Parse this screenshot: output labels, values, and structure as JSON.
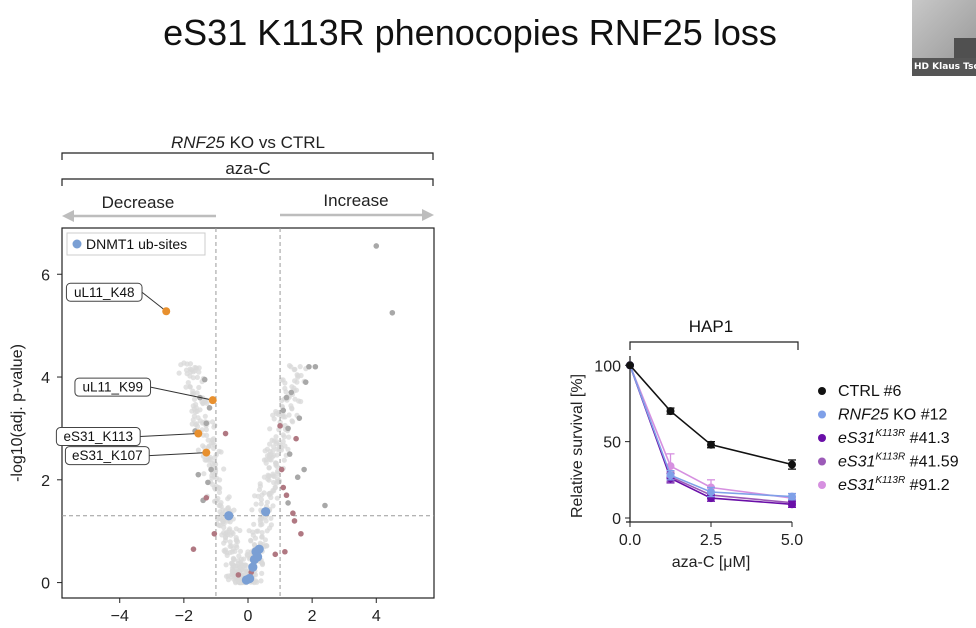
{
  "slide": {
    "title": "eS31 K113R phenocopies RNF25 loss"
  },
  "video": {
    "caption": "HD Klaus Tsc"
  },
  "chart_data": [
    {
      "type": "scatter",
      "bracket_top": {
        "italic": "RNF25",
        "rest": " KO vs CTRL"
      },
      "bracket_sub": "aza-C",
      "arrow_left": "Decrease",
      "arrow_right": "Increase",
      "ylabel": "-log10(adj. p-value)",
      "xlabel": "",
      "xlim": [
        -5.8,
        5.8
      ],
      "ylim": [
        -0.3,
        6.9
      ],
      "xticks": [
        -4,
        -2,
        0,
        2,
        4
      ],
      "yticks": [
        0,
        2,
        4,
        6
      ],
      "thresholds": {
        "x": [
          -1,
          1
        ],
        "y": 1.3
      },
      "legend": {
        "label": "DNMT1 ub-sites",
        "color": "#7a9fd4",
        "placement": "top-left"
      },
      "colors": {
        "background": "#d8d8d8",
        "significant": "#a8a8a8",
        "dnmt1": "#7a9fd4",
        "highlight": "#e8902e",
        "other": "#b07882"
      },
      "highlighted": [
        {
          "label": "uL11_K48",
          "x": -2.55,
          "y": 5.28
        },
        {
          "label": "uL11_K99",
          "x": -1.1,
          "y": 3.55
        },
        {
          "label": "eS31_K113",
          "x": -1.55,
          "y": 2.9
        },
        {
          "label": "eS31_K107",
          "x": -1.3,
          "y": 2.53
        }
      ],
      "dnmt1_points": [
        {
          "x": -0.6,
          "y": 1.3
        },
        {
          "x": 0.55,
          "y": 1.38
        },
        {
          "x": 0.25,
          "y": 0.6
        },
        {
          "x": 0.35,
          "y": 0.65
        },
        {
          "x": 0.2,
          "y": 0.45
        },
        {
          "x": 0.15,
          "y": 0.3
        },
        {
          "x": -0.05,
          "y": 0.05
        },
        {
          "x": 0.05,
          "y": 0.08
        },
        {
          "x": 0.3,
          "y": 0.5
        }
      ],
      "other_points": [
        {
          "x": -1.3,
          "y": 1.65
        },
        {
          "x": -0.7,
          "y": 2.9
        },
        {
          "x": -1.7,
          "y": 0.65
        },
        {
          "x": -1.05,
          "y": 0.95
        },
        {
          "x": -0.3,
          "y": 0.15
        },
        {
          "x": 0.1,
          "y": 0.2
        },
        {
          "x": 0.85,
          "y": 0.55
        },
        {
          "x": 1.1,
          "y": 1.85
        },
        {
          "x": 1.2,
          "y": 1.7
        },
        {
          "x": 1.05,
          "y": 2.2
        },
        {
          "x": 1.4,
          "y": 1.35
        },
        {
          "x": 1.5,
          "y": 2.8
        },
        {
          "x": 1.15,
          "y": 0.6
        },
        {
          "x": 1.0,
          "y": 3.05
        },
        {
          "x": 1.45,
          "y": 1.2
        },
        {
          "x": 1.65,
          "y": 0.95
        }
      ],
      "significant_points": [
        {
          "x": 4.0,
          "y": 6.55
        },
        {
          "x": 4.5,
          "y": 5.25
        },
        {
          "x": 1.9,
          "y": 4.2
        },
        {
          "x": 2.1,
          "y": 4.2
        },
        {
          "x": 1.35,
          "y": 3.7
        },
        {
          "x": 1.8,
          "y": 3.9
        },
        {
          "x": 2.4,
          "y": 1.5
        },
        {
          "x": 1.6,
          "y": 3.2
        },
        {
          "x": 1.2,
          "y": 3.6
        },
        {
          "x": 1.1,
          "y": 3.35
        },
        {
          "x": 1.25,
          "y": 3.0
        },
        {
          "x": 1.75,
          "y": 2.2
        },
        {
          "x": -1.35,
          "y": 3.95
        },
        {
          "x": -1.5,
          "y": 3.6
        },
        {
          "x": -1.2,
          "y": 3.4
        },
        {
          "x": -1.65,
          "y": 2.95
        },
        {
          "x": -1.15,
          "y": 2.2
        },
        {
          "x": -1.55,
          "y": 2.1
        },
        {
          "x": -1.25,
          "y": 1.95
        },
        {
          "x": -1.4,
          "y": 1.6
        },
        {
          "x": -1.3,
          "y": 3.1
        },
        {
          "x": 1.3,
          "y": 2.5
        },
        {
          "x": 1.55,
          "y": 2.05
        },
        {
          "x": 1.25,
          "y": 1.55
        }
      ]
    },
    {
      "type": "line",
      "title": "HAP1",
      "xlabel": "aza-C [μM]",
      "ylabel": "Relative survival [%]",
      "x": [
        0.0,
        1.25,
        2.5,
        5.0
      ],
      "xticks": [
        "0.0",
        "2.5",
        "5.0"
      ],
      "yticks": [
        0,
        50,
        100
      ],
      "xlim": [
        0,
        5
      ],
      "ylim": [
        0,
        110
      ],
      "legend": {
        "placement": "right"
      },
      "series": [
        {
          "name": "CTRL #6",
          "italic": "",
          "sup": "",
          "rest": "CTRL #6",
          "color": "#111111",
          "values": [
            100,
            70,
            48,
            35
          ],
          "err": [
            0,
            2,
            2,
            3
          ]
        },
        {
          "name": "RNF25 KO #12",
          "italic": "RNF25",
          "sup": "",
          "rest": " KO #12",
          "color": "#7fa0e8",
          "values": [
            100,
            28,
            17,
            14
          ],
          "err": [
            0,
            3,
            3,
            2
          ]
        },
        {
          "name": "eS31K113R #41.3",
          "italic": "eS31",
          "sup": "K113R",
          "rest": " #41.3",
          "color": "#6a0fa8",
          "values": [
            100,
            26,
            13,
            9
          ],
          "err": [
            0,
            3,
            2,
            2
          ]
        },
        {
          "name": "eS31K113R #41.59",
          "italic": "eS31",
          "sup": "K113R",
          "rest": " #41.59",
          "color": "#9c5ab8",
          "values": [
            100,
            27,
            15,
            10
          ],
          "err": [
            0,
            3,
            2,
            2
          ]
        },
        {
          "name": "eS31K113R #91.2",
          "italic": "eS31",
          "sup": "K113R",
          "rest": " #91.2",
          "color": "#d690e0",
          "values": [
            100,
            34,
            20,
            13
          ],
          "err": [
            0,
            8,
            5,
            3
          ]
        }
      ]
    }
  ]
}
